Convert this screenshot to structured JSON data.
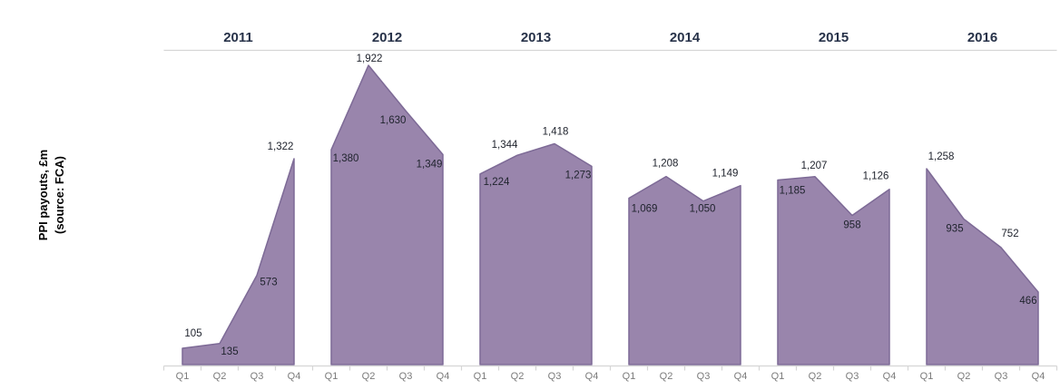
{
  "figure": {
    "y_axis_title_line1": "PPI payouts, £m",
    "y_axis_title_line2": "(source: FCA)"
  },
  "colors": {
    "area_fill": "#9985ac",
    "area_stroke": "#7d6a96",
    "axis_line": "#d6d6d6",
    "heading_text": "#273249",
    "data_label_text": "#20242e",
    "quarter_label_text": "#7b7b7b"
  },
  "chart_data": {
    "type": "area",
    "title": "",
    "xlabel": "",
    "ylabel": "PPI payouts, £m (source: FCA)",
    "categories": [
      "Q1",
      "Q2",
      "Q3",
      "Q4"
    ],
    "series": [
      {
        "name": "2011",
        "values": [
          105,
          135,
          573,
          1322
        ]
      },
      {
        "name": "2012",
        "values": [
          1380,
          1922,
          1630,
          1349
        ]
      },
      {
        "name": "2013",
        "values": [
          1224,
          1344,
          1418,
          1273
        ]
      },
      {
        "name": "2014",
        "values": [
          1069,
          1208,
          1050,
          1149
        ]
      },
      {
        "name": "2015",
        "values": [
          1185,
          1207,
          958,
          1126
        ]
      },
      {
        "name": "2016",
        "values": [
          1258,
          935,
          752,
          466
        ]
      }
    ],
    "ylim": [
      0,
      2000
    ],
    "grid": false,
    "legend": "none",
    "value_labels_shown": true
  }
}
